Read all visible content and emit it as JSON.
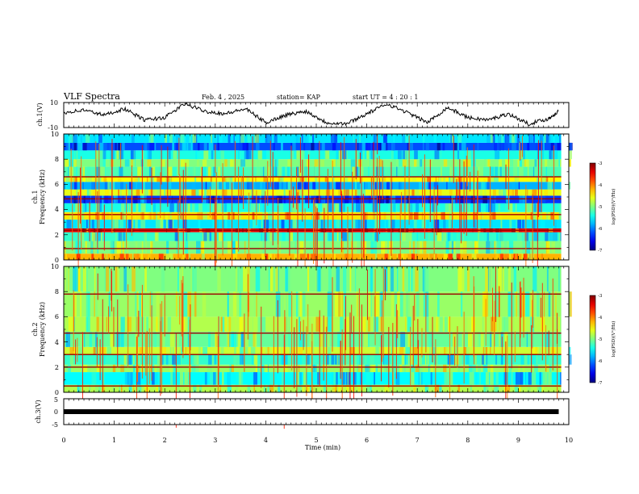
{
  "header": {
    "title": "VLF Spectra",
    "date": "Feb. 4 , 2025",
    "station": "station= KAP",
    "start": "start  UT =   4 : 20 : 1"
  },
  "chart_data": [
    {
      "type": "line",
      "name": "ch1-voltage",
      "ylabel": "ch.1(V)",
      "xlim": [
        0,
        10
      ],
      "ylim": [
        -10,
        10
      ],
      "yticks": [
        "10",
        "-10"
      ],
      "x": [
        0.0,
        0.4,
        0.8,
        1.2,
        1.6,
        2.0,
        2.4,
        2.8,
        3.2,
        3.6,
        4.0,
        4.4,
        4.8,
        5.2,
        5.6,
        6.0,
        6.4,
        6.8,
        7.2,
        7.6,
        8.0,
        8.4,
        8.8,
        9.2,
        9.6,
        9.8
      ],
      "y": [
        2,
        4,
        0,
        5,
        -4,
        -2,
        9,
        3,
        1,
        5,
        -6,
        0,
        3,
        -6,
        -7,
        1,
        9,
        2,
        -6,
        6,
        -2,
        -4,
        1,
        -7,
        -3,
        3
      ]
    },
    {
      "type": "heatmap",
      "name": "ch1-spectrogram",
      "ylabel": "ch.1\nFrequency (kHz)",
      "xlim": [
        0,
        10
      ],
      "ylim": [
        0,
        10
      ],
      "yticks": [
        "0",
        "2",
        "4",
        "6",
        "8",
        "10"
      ],
      "colorbar": {
        "label": "log(PSD)(V²/Hz)",
        "ticks": [
          "-3",
          "-4",
          "-5",
          "-6",
          "-7"
        ],
        "range": [
          -7,
          -3
        ]
      },
      "bands_khz": [
        {
          "f0": 0.0,
          "f1": 0.5,
          "level": -4.2
        },
        {
          "f0": 0.5,
          "f1": 1.5,
          "level": -5.0
        },
        {
          "f0": 1.5,
          "f1": 2.2,
          "level": -5.3
        },
        {
          "f0": 2.2,
          "f1": 2.5,
          "level": -3.4
        },
        {
          "f0": 2.5,
          "f1": 3.2,
          "level": -5.6
        },
        {
          "f0": 3.2,
          "f1": 3.8,
          "level": -4.4
        },
        {
          "f0": 3.8,
          "f1": 4.5,
          "level": -5.4
        },
        {
          "f0": 4.5,
          "f1": 5.1,
          "level": -6.3
        },
        {
          "f0": 5.1,
          "f1": 5.6,
          "level": -4.6
        },
        {
          "f0": 5.6,
          "f1": 6.2,
          "level": -5.8
        },
        {
          "f0": 6.2,
          "f1": 6.6,
          "level": -4.5
        },
        {
          "f0": 6.6,
          "f1": 7.4,
          "level": -5.2
        },
        {
          "f0": 7.4,
          "f1": 8.0,
          "level": -5.0
        },
        {
          "f0": 8.0,
          "f1": 8.7,
          "level": -5.4
        },
        {
          "f0": 8.7,
          "f1": 9.3,
          "level": -6.2
        },
        {
          "f0": 9.3,
          "f1": 10.0,
          "level": -5.6
        }
      ],
      "lines_khz": [
        0.9,
        2.35,
        3.6,
        4.85,
        6.6
      ]
    },
    {
      "type": "heatmap",
      "name": "ch2-spectrogram",
      "ylabel": "ch.2\nFrequency (kHz)",
      "xlim": [
        0,
        10
      ],
      "ylim": [
        0,
        10
      ],
      "yticks": [
        "0",
        "2",
        "4",
        "6",
        "8",
        "10"
      ],
      "colorbar": {
        "label": "log(PSD)(V²/Hz)",
        "ticks": [
          "-3",
          "-4",
          "-5",
          "-6",
          "-7"
        ],
        "range": [
          -7,
          -3
        ]
      },
      "bands_khz": [
        {
          "f0": 0.0,
          "f1": 0.6,
          "level": -4.8
        },
        {
          "f0": 0.6,
          "f1": 1.6,
          "level": -5.5
        },
        {
          "f0": 1.6,
          "f1": 2.2,
          "level": -4.9
        },
        {
          "f0": 2.2,
          "f1": 3.0,
          "level": -5.3
        },
        {
          "f0": 3.0,
          "f1": 3.6,
          "level": -4.7
        },
        {
          "f0": 3.6,
          "f1": 4.8,
          "level": -5.1
        },
        {
          "f0": 4.8,
          "f1": 6.0,
          "level": -4.8
        },
        {
          "f0": 6.0,
          "f1": 8.0,
          "level": -4.9
        },
        {
          "f0": 8.0,
          "f1": 10.0,
          "level": -5.0
        }
      ],
      "lines_khz": [
        0.5,
        2.0,
        3.0,
        4.7,
        7.8
      ]
    },
    {
      "type": "line",
      "name": "ch3-voltage",
      "ylabel": "ch.3(V)",
      "xlabel": "Time  (min)",
      "xlim": [
        0,
        10
      ],
      "ylim": [
        -5,
        5
      ],
      "yticks": [
        "5",
        "0",
        "-5"
      ],
      "xticks": [
        "0",
        "1",
        "2",
        "3",
        "4",
        "5",
        "6",
        "7",
        "8",
        "9",
        "10"
      ],
      "x": [
        0.0,
        9.8
      ],
      "y": [
        0,
        0
      ]
    }
  ]
}
